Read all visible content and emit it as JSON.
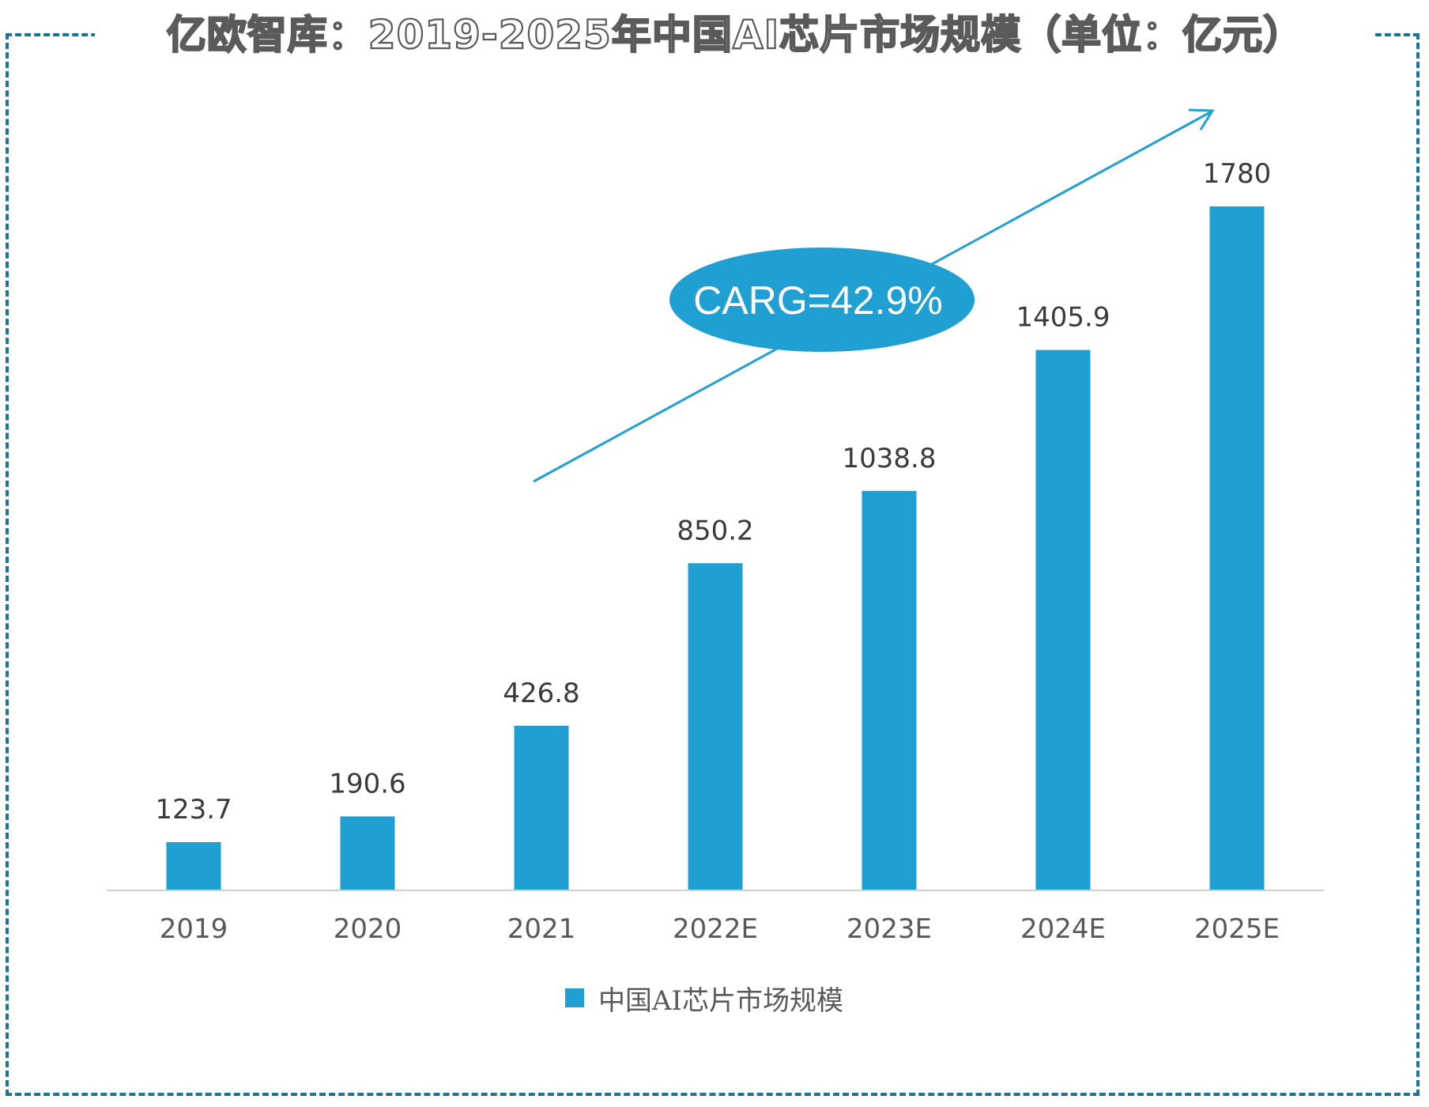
{
  "title": "亿欧智库：2019-2025年中国AI芯片市场规模（单位：亿元）",
  "colors": {
    "bar": "#1f9fd2",
    "border": "#1b7397",
    "arrow": "#1f9fd2",
    "axis": "#d0d0d0"
  },
  "annotation": {
    "label": "CARG=42.9%"
  },
  "legend": {
    "label": "中国AI芯片市场规模"
  },
  "chart_data": {
    "type": "bar",
    "title": "亿欧智库：2019-2025年中国AI芯片市场规模（单位：亿元）",
    "xlabel": "",
    "ylabel": "",
    "ylim": [
      0,
      1780
    ],
    "grid": false,
    "legend_position": "bottom",
    "categories": [
      "2019",
      "2020",
      "2021",
      "2022E",
      "2023E",
      "2024E",
      "2025E"
    ],
    "series": [
      {
        "name": "中国AI芯片市场规模",
        "values": [
          123.7,
          190.6,
          426.8,
          850.2,
          1038.8,
          1405.9,
          1780
        ],
        "value_labels": [
          "123.7",
          "190.6",
          "426.8",
          "850.2",
          "1038.8",
          "1405.9",
          "1780"
        ]
      }
    ],
    "annotations": [
      {
        "type": "trend-arrow",
        "text": "CARG=42.9%"
      }
    ]
  }
}
